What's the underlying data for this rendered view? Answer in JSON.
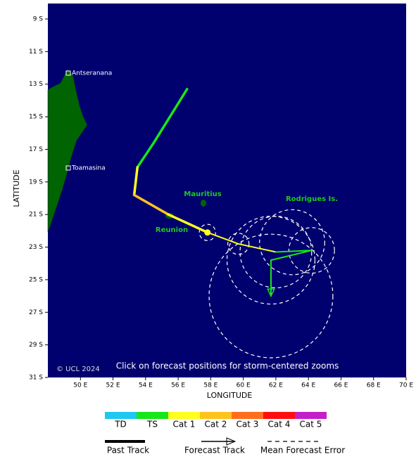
{
  "chart_data": {
    "type": "storm-track",
    "xlabel": "LONGITUDE",
    "ylabel": "LATITUDE",
    "xlim": [
      48,
      70
    ],
    "ylim": [
      -31,
      -8.05
    ],
    "xticks": [
      {
        "value": 50,
        "label": "50 E"
      },
      {
        "value": 52,
        "label": "52 E"
      },
      {
        "value": 54,
        "label": "54 E"
      },
      {
        "value": 56,
        "label": "56 E"
      },
      {
        "value": 58,
        "label": "58 E"
      },
      {
        "value": 60,
        "label": "60 E"
      },
      {
        "value": 62,
        "label": "62 E"
      },
      {
        "value": 64,
        "label": "64 E"
      },
      {
        "value": 66,
        "label": "66 E"
      },
      {
        "value": 68,
        "label": "68 E"
      },
      {
        "value": 70,
        "label": "70 E"
      }
    ],
    "yticks": [
      {
        "value": -9,
        "label": "9 S"
      },
      {
        "value": -11,
        "label": "11 S"
      },
      {
        "value": -13,
        "label": "13 S"
      },
      {
        "value": -15,
        "label": "15 S"
      },
      {
        "value": -17,
        "label": "17 S"
      },
      {
        "value": -19,
        "label": "19 S"
      },
      {
        "value": -21,
        "label": "21 S"
      },
      {
        "value": -23,
        "label": "23 S"
      },
      {
        "value": -25,
        "label": "25 S"
      },
      {
        "value": -27,
        "label": "27 S"
      },
      {
        "value": -29,
        "label": "29 S"
      },
      {
        "value": -31,
        "label": "31 S"
      }
    ],
    "past_track": {
      "lon": [
        56.55,
        54.5,
        53.5,
        53.3,
        55.4,
        57.8
      ],
      "lat": [
        -13.3,
        -16.6,
        -18.1,
        -19.8,
        -21.0,
        -22.1
      ],
      "category": [
        "TS",
        "TS",
        "TS",
        "Cat 1",
        "Cat 2",
        "Cat 1"
      ]
    },
    "forecast_track": {
      "lon": [
        57.8,
        59.7,
        62.0,
        64.2,
        61.7,
        61.7
      ],
      "lat": [
        -22.1,
        -22.8,
        -23.3,
        -23.2,
        -23.8,
        -26.0
      ],
      "category": [
        "Cat 1",
        "Cat 1",
        "Cat 1",
        "TS",
        "TS",
        "TS"
      ]
    },
    "error_circles": {
      "lon": [
        57.8,
        59.7,
        62.0,
        63.0,
        64.2,
        61.7,
        61.7
      ],
      "lat": [
        -22.1,
        -22.8,
        -23.3,
        -22.7,
        -23.2,
        -23.8,
        -26.0
      ],
      "radius": [
        0.5,
        0.65,
        2.2,
        2.0,
        1.4,
        2.7,
        3.8
      ]
    },
    "intensity_scale": {
      "labels": [
        "TD",
        "TS",
        "Cat 1",
        "Cat 2",
        "Cat 3",
        "Cat 4",
        "Cat 5"
      ],
      "colors": [
        "#1ec8f0",
        "#19e619",
        "#ffff1e",
        "#ffc31e",
        "#ff6e1e",
        "#ff0f0f",
        "#c31ec8"
      ]
    },
    "places": [
      "Antseranana",
      "Toamasina",
      "Mauritius",
      "Reunion",
      "Rodrigues Is."
    ],
    "credit": "© UCL 2024",
    "note": "Click on forecast positions for storm-centered zooms",
    "legend": [
      "Past Track",
      "Forecast Track",
      "Mean Forecast Error"
    ]
  }
}
